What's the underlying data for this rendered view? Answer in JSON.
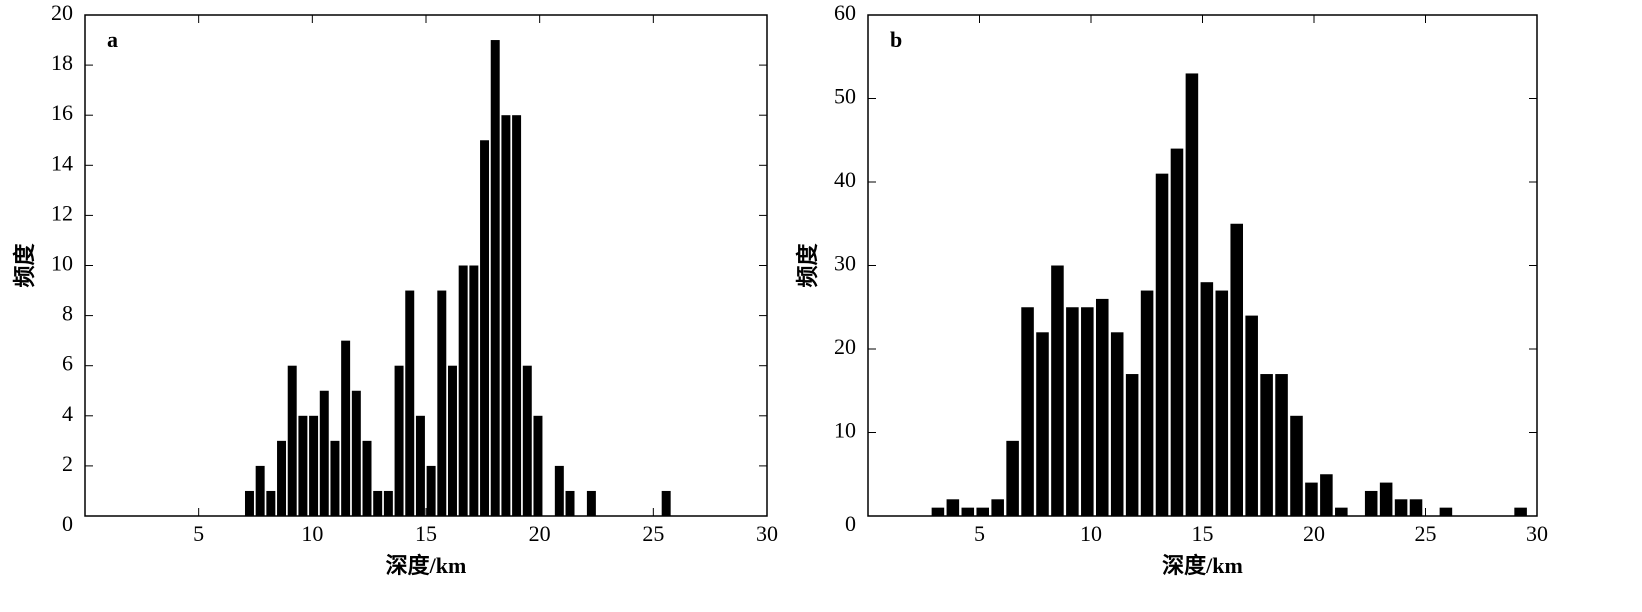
{
  "chart_data": [
    {
      "type": "histogram",
      "annotation": "a",
      "xlabel": "深度/km",
      "ylabel": "频度",
      "color": "#000000",
      "bins": [
        7.0,
        7.47,
        7.94,
        8.41,
        8.88,
        9.35,
        9.82,
        10.29,
        10.76,
        11.23,
        11.7,
        12.17,
        12.64,
        13.11,
        13.58,
        14.05,
        14.52,
        14.99,
        15.46,
        15.93,
        16.4,
        16.87,
        17.34,
        17.81,
        18.28,
        18.75,
        19.22,
        19.69,
        20.16,
        20.63,
        21.1,
        21.57,
        22.04,
        22.51,
        22.98,
        23.45,
        23.92,
        24.39,
        24.86,
        25.33,
        25.8
      ],
      "values": [
        1,
        2,
        1,
        3,
        6,
        4,
        4,
        5,
        3,
        7,
        5,
        3,
        1,
        1,
        6,
        9,
        4,
        2,
        9,
        6,
        10,
        10,
        15,
        19,
        16,
        16,
        6,
        4,
        0,
        2,
        1,
        0,
        1,
        0,
        0,
        0,
        0,
        0,
        0,
        1
      ],
      "xlim": [
        0,
        30
      ],
      "xticks": [
        5,
        10,
        15,
        20,
        25,
        30
      ],
      "ylim": [
        0,
        20
      ],
      "yticks": [
        0,
        2,
        4,
        6,
        8,
        10,
        12,
        14,
        16,
        18,
        20
      ]
    },
    {
      "type": "histogram",
      "annotation": "b",
      "xlabel": "深度/km",
      "ylabel": "频度",
      "color": "#000000",
      "bins": [
        2.8,
        3.47,
        4.14,
        4.81,
        5.48,
        6.15,
        6.82,
        7.49,
        8.16,
        8.83,
        9.5,
        10.17,
        10.84,
        11.51,
        12.18,
        12.85,
        13.52,
        14.19,
        14.86,
        15.53,
        16.2,
        16.87,
        17.54,
        18.21,
        18.88,
        19.55,
        20.22,
        20.89,
        21.56,
        22.23,
        22.9,
        23.57,
        24.24,
        24.91,
        25.58,
        26.25,
        26.92,
        27.59,
        28.26,
        28.93,
        29.6
      ],
      "values": [
        1,
        2,
        1,
        1,
        2,
        9,
        25,
        22,
        30,
        25,
        25,
        26,
        22,
        17,
        27,
        41,
        44,
        53,
        28,
        27,
        35,
        24,
        17,
        17,
        12,
        4,
        5,
        1,
        0,
        3,
        4,
        2,
        2,
        0,
        1,
        0,
        0,
        0,
        0,
        1
      ],
      "xlim": [
        0,
        30
      ],
      "xticks": [
        5,
        10,
        15,
        20,
        25,
        30
      ],
      "ylim": [
        0,
        60
      ],
      "yticks": [
        0,
        10,
        20,
        30,
        40,
        50,
        60
      ]
    }
  ]
}
